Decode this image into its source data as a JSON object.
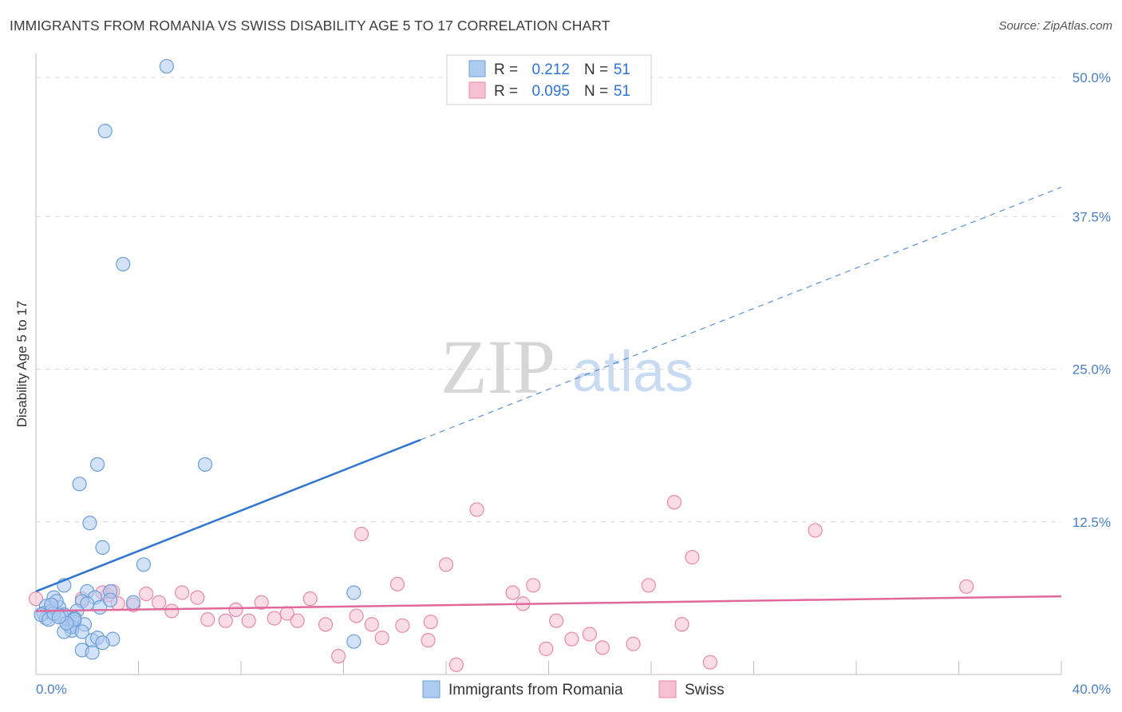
{
  "header": {
    "title": "IMMIGRANTS FROM ROMANIA VS SWISS DISABILITY AGE 5 TO 17 CORRELATION CHART",
    "source": "Source: ZipAtlas.com"
  },
  "watermark": {
    "zip": "ZIP",
    "atlas": "atlas"
  },
  "legend_top": [
    {
      "r_label": "R = ",
      "r_value": "0.212",
      "n_label": "N = ",
      "n_value": "51"
    },
    {
      "r_label": "R = ",
      "r_value": "0.095",
      "n_label": "N = ",
      "n_value": "51"
    }
  ],
  "colors": {
    "blue_fill": "#aecbf0",
    "blue_stroke": "#6a9fd8",
    "blue_line": "#2f74d0",
    "pink_fill": "#f5c0d1",
    "pink_stroke": "#e889a8",
    "pink_line": "#e0699a",
    "tick": "#4a7fc4",
    "grid": "#d8d8d8"
  },
  "chart_data": {
    "type": "scatter",
    "title": "IMMIGRANTS FROM ROMANIA VS SWISS DISABILITY AGE 5 TO 17 CORRELATION CHART",
    "xlabel": "",
    "ylabel": "Disability Age 5 to 17",
    "xlim": [
      0,
      40
    ],
    "ylim": [
      0,
      50
    ],
    "x_tick_labels": [
      "0.0%",
      "40.0%"
    ],
    "y_ticks": [
      12.5,
      25.0,
      37.5,
      50.0
    ],
    "y_tick_labels": [
      "12.5%",
      "25.0%",
      "37.5%",
      "50.0%"
    ],
    "series": [
      {
        "name": "Immigrants from Romania",
        "R": 0.212,
        "N": 51,
        "trend": {
          "x0": 0.0,
          "y0": 6.8,
          "x1_solid": 15.0,
          "x1": 40.0,
          "y1": 39.9
        },
        "points": [
          [
            5.1,
            49.8
          ],
          [
            2.7,
            44.5
          ],
          [
            3.4,
            33.6
          ],
          [
            2.4,
            17.2
          ],
          [
            6.6,
            17.2
          ],
          [
            1.7,
            15.6
          ],
          [
            2.1,
            12.4
          ],
          [
            2.6,
            10.4
          ],
          [
            4.2,
            9.0
          ],
          [
            12.4,
            6.7
          ],
          [
            1.1,
            7.3
          ],
          [
            2.0,
            6.8
          ],
          [
            2.9,
            6.8
          ],
          [
            2.3,
            6.3
          ],
          [
            1.8,
            6.0
          ],
          [
            0.7,
            6.3
          ],
          [
            3.8,
            5.9
          ],
          [
            2.0,
            5.8
          ],
          [
            0.4,
            5.6
          ],
          [
            0.9,
            5.5
          ],
          [
            1.6,
            5.2
          ],
          [
            0.3,
            5.0
          ],
          [
            0.6,
            5.2
          ],
          [
            1.1,
            4.9
          ],
          [
            0.4,
            4.6
          ],
          [
            0.2,
            4.9
          ],
          [
            1.5,
            4.6
          ],
          [
            0.5,
            4.5
          ],
          [
            1.0,
            4.8
          ],
          [
            1.5,
            4.3
          ],
          [
            1.9,
            4.1
          ],
          [
            1.3,
            4.0
          ],
          [
            1.4,
            3.6
          ],
          [
            1.4,
            3.9
          ],
          [
            1.8,
            3.5
          ],
          [
            1.1,
            3.5
          ],
          [
            2.2,
            2.8
          ],
          [
            2.4,
            3.0
          ],
          [
            3.0,
            2.9
          ],
          [
            2.6,
            2.6
          ],
          [
            12.4,
            2.7
          ],
          [
            1.8,
            2.0
          ],
          [
            2.2,
            1.8
          ],
          [
            0.7,
            5.0
          ],
          [
            1.5,
            4.5
          ],
          [
            1.2,
            4.2
          ],
          [
            0.9,
            4.7
          ],
          [
            2.5,
            5.5
          ],
          [
            0.8,
            6.0
          ],
          [
            2.9,
            6.1
          ],
          [
            0.6,
            5.7
          ]
        ]
      },
      {
        "name": "Swiss",
        "R": 0.095,
        "N": 51,
        "trend": {
          "x0": 0.0,
          "y0": 5.2,
          "x1": 40.0,
          "y1": 6.4
        },
        "points": [
          [
            0.0,
            6.2
          ],
          [
            0.6,
            5.7
          ],
          [
            1.8,
            6.2
          ],
          [
            2.8,
            6.5
          ],
          [
            2.6,
            6.7
          ],
          [
            3.0,
            6.8
          ],
          [
            3.2,
            5.8
          ],
          [
            3.8,
            5.7
          ],
          [
            4.3,
            6.6
          ],
          [
            4.8,
            5.9
          ],
          [
            5.3,
            5.2
          ],
          [
            5.7,
            6.7
          ],
          [
            6.3,
            6.3
          ],
          [
            6.7,
            4.5
          ],
          [
            7.4,
            4.4
          ],
          [
            7.8,
            5.3
          ],
          [
            8.3,
            4.4
          ],
          [
            8.8,
            5.9
          ],
          [
            9.3,
            4.6
          ],
          [
            9.8,
            5.0
          ],
          [
            10.2,
            4.4
          ],
          [
            10.7,
            6.2
          ],
          [
            11.3,
            4.1
          ],
          [
            11.8,
            1.5
          ],
          [
            12.5,
            4.8
          ],
          [
            12.7,
            11.5
          ],
          [
            13.1,
            4.1
          ],
          [
            13.5,
            3.0
          ],
          [
            14.1,
            7.4
          ],
          [
            14.3,
            4.0
          ],
          [
            15.3,
            2.8
          ],
          [
            15.4,
            4.3
          ],
          [
            16.0,
            9.0
          ],
          [
            16.4,
            0.8
          ],
          [
            17.2,
            13.5
          ],
          [
            18.6,
            6.7
          ],
          [
            19.0,
            5.8
          ],
          [
            19.4,
            7.3
          ],
          [
            19.9,
            2.1
          ],
          [
            20.3,
            4.4
          ],
          [
            20.9,
            2.9
          ],
          [
            21.6,
            3.3
          ],
          [
            22.1,
            2.2
          ],
          [
            23.3,
            2.5
          ],
          [
            23.9,
            7.3
          ],
          [
            24.9,
            14.1
          ],
          [
            25.2,
            4.1
          ],
          [
            25.6,
            9.6
          ],
          [
            26.3,
            1.0
          ],
          [
            30.4,
            11.8
          ],
          [
            36.3,
            7.2
          ]
        ]
      }
    ]
  },
  "legend_bottom": [
    {
      "label": "Immigrants from Romania"
    },
    {
      "label": "Swiss"
    }
  ]
}
